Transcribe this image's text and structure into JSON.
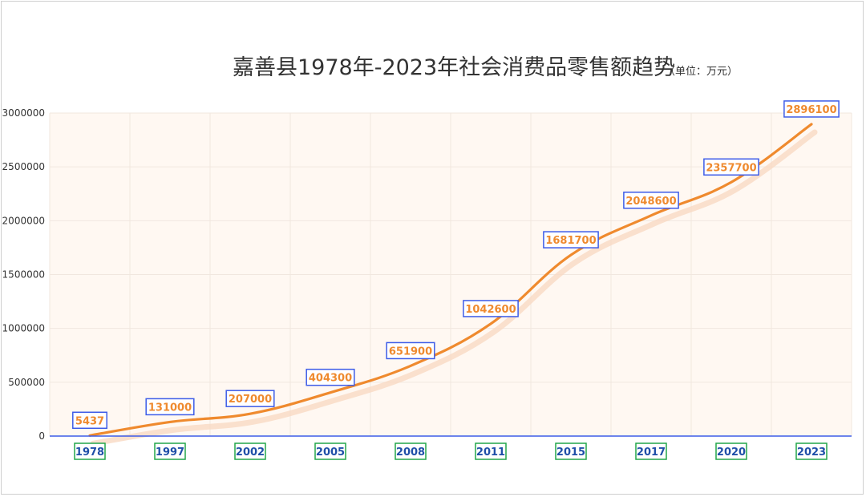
{
  "chart_data": {
    "type": "line",
    "title": "嘉善县1978年-2023年社会消费品零售额趋势",
    "unit": "（单位：万元）",
    "categories": [
      "1978",
      "1997",
      "2002",
      "2005",
      "2008",
      "2011",
      "2015",
      "2017",
      "2020",
      "2023"
    ],
    "series": [
      {
        "values": [
          5437,
          131000,
          207000,
          404300,
          651900,
          1042600,
          1681700,
          2048600,
          2357700,
          2896100
        ]
      }
    ],
    "data_labels": [
      "5437",
      "131000",
      "207000",
      "404300",
      "651900",
      "1042600",
      "1681700",
      "2048600",
      "2357700",
      "2896100"
    ],
    "y_ticks": [
      "0",
      "500000",
      "1000000",
      "1500000",
      "2000000",
      "2500000",
      "3000000"
    ],
    "ylim": [
      0,
      3000000
    ],
    "grid": true,
    "colors": {
      "line": "#ef8a2e",
      "shadow": "#f9d9c3",
      "plot_bg": "#fff8f2",
      "label_border": "#3d5ce8",
      "xtick_border": "#22a64a",
      "xtick_text": "#1f4fa8",
      "baseline": "#3d5ce8",
      "grid": "#f1e7df"
    }
  }
}
